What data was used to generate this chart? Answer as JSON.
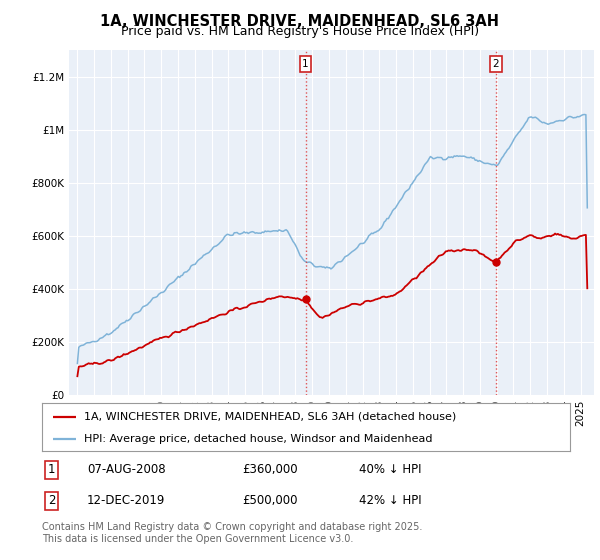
{
  "title": "1A, WINCHESTER DRIVE, MAIDENHEAD, SL6 3AH",
  "subtitle": "Price paid vs. HM Land Registry's House Price Index (HPI)",
  "ylim": [
    0,
    1300000
  ],
  "yticks": [
    0,
    200000,
    400000,
    600000,
    800000,
    1000000,
    1200000
  ],
  "ytick_labels": [
    "£0",
    "£200K",
    "£400K",
    "£600K",
    "£800K",
    "£1M",
    "£1.2M"
  ],
  "background_color": "#ffffff",
  "plot_bg_color": "#eaf0f8",
  "grid_color": "#ffffff",
  "hpi_color": "#7fb3d8",
  "price_color": "#cc0000",
  "vline_color": "#dd4444",
  "annotation1": {
    "x": 2008.6,
    "label": "1",
    "date": "07-AUG-2008",
    "price": "£360,000",
    "note": "40% ↓ HPI"
  },
  "annotation2": {
    "x": 2019.95,
    "label": "2",
    "date": "12-DEC-2019",
    "price": "£500,000",
    "note": "42% ↓ HPI"
  },
  "legend_line1": "1A, WINCHESTER DRIVE, MAIDENHEAD, SL6 3AH (detached house)",
  "legend_line2": "HPI: Average price, detached house, Windsor and Maidenhead",
  "footer": "Contains HM Land Registry data © Crown copyright and database right 2025.\nThis data is licensed under the Open Government Licence v3.0.",
  "title_fontsize": 10.5,
  "subtitle_fontsize": 9,
  "tick_fontsize": 7.5,
  "legend_fontsize": 8,
  "ann_fontsize": 8.5,
  "footer_fontsize": 7
}
